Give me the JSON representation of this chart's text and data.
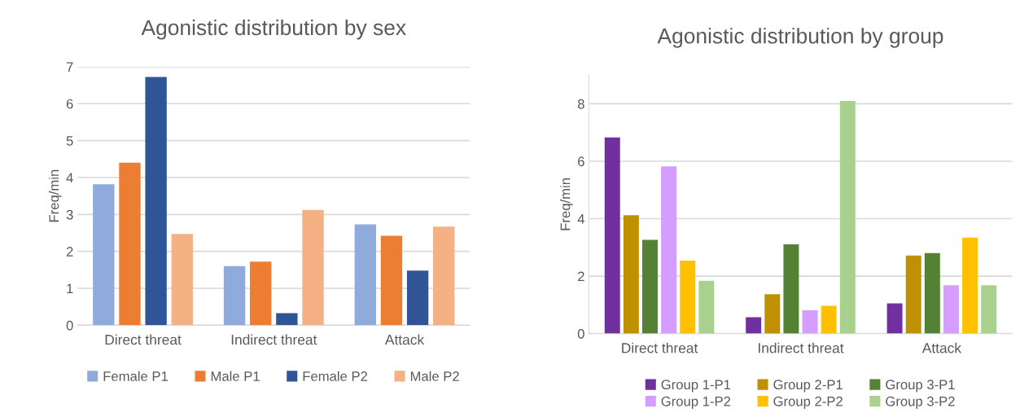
{
  "chart_data": [
    {
      "type": "bar",
      "title": "Agonistic distribution by sex",
      "ylabel": "Freq/min",
      "categories": [
        "Direct threat",
        "Indirect threat",
        "Attack"
      ],
      "ylim": [
        0,
        7
      ],
      "yticks": [
        0,
        1,
        2,
        3,
        4,
        5,
        6,
        7
      ],
      "grid": "y",
      "legend": "bottom",
      "series": [
        {
          "name": "Female P1",
          "color": "#8faadc",
          "values": [
            3.82,
            1.6,
            2.73
          ]
        },
        {
          "name": "Male P1",
          "color": "#ed7d31",
          "values": [
            4.4,
            1.72,
            2.42
          ]
        },
        {
          "name": "Female P2",
          "color": "#2f5597",
          "values": [
            6.72,
            0.33,
            1.48
          ]
        },
        {
          "name": "Male P2",
          "color": "#f4b183",
          "values": [
            2.47,
            3.12,
            2.67
          ]
        }
      ]
    },
    {
      "type": "bar",
      "title": "Agonistic distribution by group",
      "ylabel": "Freq/min",
      "categories": [
        "Direct threat",
        "Indirect threat",
        "Attack"
      ],
      "ylim": [
        0,
        9
      ],
      "yticks": [
        0,
        2,
        4,
        6,
        8
      ],
      "grid": "y",
      "legend": "bottom",
      "series": [
        {
          "name": "Group 1-P1",
          "color": "#7030a0",
          "values": [
            6.83,
            0.57,
            1.05
          ]
        },
        {
          "name": "Group 2-P1",
          "color": "#bf9000",
          "values": [
            4.12,
            1.37,
            2.72
          ]
        },
        {
          "name": "Group 3-P1",
          "color": "#548235",
          "values": [
            3.26,
            3.11,
            2.8
          ]
        },
        {
          "name": "Group 1-P2",
          "color": "#d59dff",
          "values": [
            5.82,
            0.81,
            1.68
          ]
        },
        {
          "name": "Group 2-P2",
          "color": "#ffc000",
          "values": [
            2.54,
            0.97,
            3.34
          ]
        },
        {
          "name": "Group 3-P2",
          "color": "#a9d18e",
          "values": [
            1.84,
            8.1,
            1.68
          ]
        }
      ]
    }
  ]
}
